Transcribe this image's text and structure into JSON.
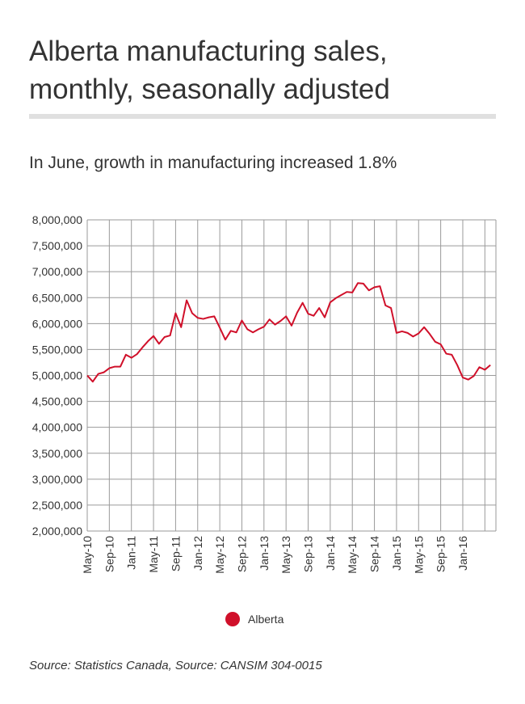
{
  "title_line1": "Alberta manufacturing sales,",
  "title_line2": "monthly, seasonally adjusted",
  "subtitle": "In June, growth in manufacturing increased 1.8%",
  "source": "Source: Statistics Canada, Source: CANSIM 304-0015",
  "colors": {
    "series": "#d0102a",
    "grid": "#9a9a9a",
    "rule": "#e0e0e0"
  },
  "chart_data": {
    "type": "line",
    "ylim": [
      2000000,
      8000000
    ],
    "yticks": [
      2000000,
      2500000,
      3000000,
      3500000,
      4000000,
      4500000,
      5000000,
      5500000,
      6000000,
      6500000,
      7000000,
      7500000,
      8000000
    ],
    "ytick_labels": [
      "2,000,000",
      "2,500,000",
      "3,000,000",
      "3,500,000",
      "4,000,000",
      "4,500,000",
      "5,000,000",
      "5,500,000",
      "6,000,000",
      "6,500,000",
      "7,000,000",
      "7,500,000",
      "8,000,000"
    ],
    "xtick_labels": [
      "May-10",
      "Sep-10",
      "Jan-11",
      "May-11",
      "Sep-11",
      "Jan-12",
      "May-12",
      "Sep-12",
      "Jan-13",
      "May-13",
      "Sep-13",
      "Jan-14",
      "May-14",
      "Sep-14",
      "Jan-15",
      "May-15",
      "Sep-15",
      "Jan-16"
    ],
    "grid": true,
    "legend_position": "bottom-center",
    "series": [
      {
        "name": "Alberta",
        "x": [
          "May-10",
          "Jun-10",
          "Jul-10",
          "Aug-10",
          "Sep-10",
          "Oct-10",
          "Nov-10",
          "Dec-10",
          "Jan-11",
          "Feb-11",
          "Mar-11",
          "Apr-11",
          "May-11",
          "Jun-11",
          "Jul-11",
          "Aug-11",
          "Sep-11",
          "Oct-11",
          "Nov-11",
          "Dec-11",
          "Jan-12",
          "Feb-12",
          "Mar-12",
          "Apr-12",
          "May-12",
          "Jun-12",
          "Jul-12",
          "Aug-12",
          "Sep-12",
          "Oct-12",
          "Nov-12",
          "Dec-12",
          "Jan-13",
          "Feb-13",
          "Mar-13",
          "Apr-13",
          "May-13",
          "Jun-13",
          "Jul-13",
          "Aug-13",
          "Sep-13",
          "Oct-13",
          "Nov-13",
          "Dec-13",
          "Jan-14",
          "Feb-14",
          "Mar-14",
          "Apr-14",
          "May-14",
          "Jun-14",
          "Jul-14",
          "Aug-14",
          "Sep-14",
          "Oct-14",
          "Nov-14",
          "Dec-14",
          "Jan-15",
          "Feb-15",
          "Mar-15",
          "Apr-15",
          "May-15",
          "Jun-15",
          "Jul-15",
          "Aug-15",
          "Sep-15",
          "Oct-15",
          "Nov-15",
          "Dec-15",
          "Jan-16",
          "Feb-16",
          "Mar-16",
          "Apr-16",
          "May-16",
          "Jun-16"
        ],
        "values": [
          5000000,
          4880000,
          5030000,
          5060000,
          5140000,
          5170000,
          5170000,
          5400000,
          5340000,
          5410000,
          5540000,
          5660000,
          5760000,
          5610000,
          5740000,
          5770000,
          6200000,
          5930000,
          6450000,
          6200000,
          6110000,
          6090000,
          6120000,
          6140000,
          5920000,
          5690000,
          5860000,
          5830000,
          6060000,
          5890000,
          5830000,
          5890000,
          5940000,
          6080000,
          5980000,
          6050000,
          6140000,
          5960000,
          6210000,
          6400000,
          6190000,
          6150000,
          6300000,
          6120000,
          6410000,
          6490000,
          6550000,
          6610000,
          6600000,
          6780000,
          6770000,
          6640000,
          6700000,
          6720000,
          6350000,
          6300000,
          5820000,
          5850000,
          5820000,
          5750000,
          5810000,
          5930000,
          5800000,
          5650000,
          5600000,
          5420000,
          5400000,
          5200000,
          4960000,
          4920000,
          4990000,
          5160000,
          5110000,
          5200000
        ]
      }
    ]
  }
}
